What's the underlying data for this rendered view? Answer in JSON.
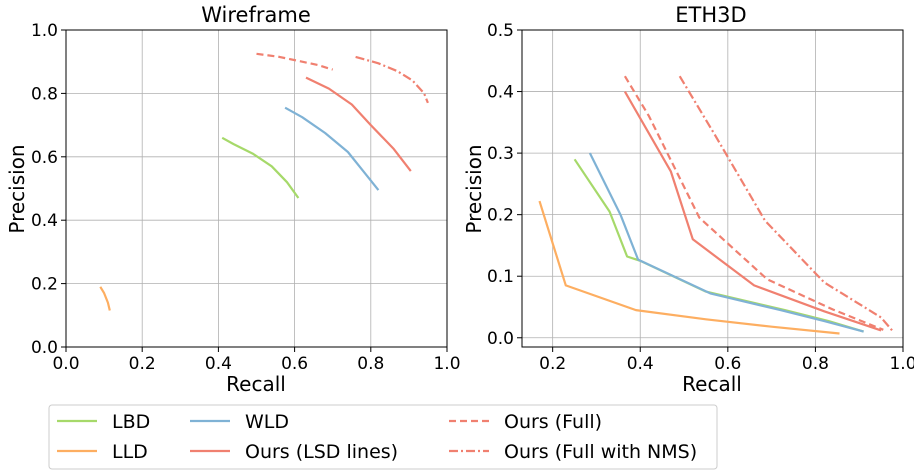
{
  "chart_data": [
    {
      "type": "line",
      "title": "Wireframe",
      "xlabel": "Recall",
      "ylabel": "Precision",
      "xlim": [
        0,
        1
      ],
      "ylim": [
        0,
        1
      ],
      "xticks": [
        "0.0",
        "0.2",
        "0.4",
        "0.6",
        "0.8",
        "1.0"
      ],
      "yticks": [
        "0.0",
        "0.2",
        "0.4",
        "0.6",
        "0.8",
        "1.0"
      ],
      "series": [
        {
          "name": "LBD",
          "color": "#a6d96a",
          "dash": "solid",
          "x": [
            0.41,
            0.44,
            0.49,
            0.54,
            0.58,
            0.61
          ],
          "y": [
            0.66,
            0.64,
            0.61,
            0.57,
            0.52,
            0.47
          ]
        },
        {
          "name": "LLD",
          "color": "#fdae61",
          "dash": "solid",
          "x": [
            0.09,
            0.1,
            0.11,
            0.115
          ],
          "y": [
            0.19,
            0.17,
            0.14,
            0.115
          ]
        },
        {
          "name": "WLD",
          "color": "#7fb2d5",
          "dash": "solid",
          "x": [
            0.575,
            0.62,
            0.68,
            0.74,
            0.78,
            0.82
          ],
          "y": [
            0.755,
            0.725,
            0.675,
            0.615,
            0.555,
            0.495
          ]
        },
        {
          "name": "Ours (LSD lines)",
          "color": "#f08070",
          "dash": "solid",
          "x": [
            0.63,
            0.69,
            0.75,
            0.8,
            0.86,
            0.905
          ],
          "y": [
            0.85,
            0.815,
            0.765,
            0.7,
            0.625,
            0.555
          ]
        },
        {
          "name": "Ours (Full)",
          "color": "#f08070",
          "dash": "dashed",
          "x": [
            0.5,
            0.56,
            0.62,
            0.66,
            0.7
          ],
          "y": [
            0.925,
            0.915,
            0.9,
            0.89,
            0.875
          ]
        },
        {
          "name": "Ours (Full with NMS)",
          "color": "#f08070",
          "dash": "dashdot",
          "x": [
            0.76,
            0.82,
            0.87,
            0.91,
            0.94,
            0.95
          ],
          "y": [
            0.915,
            0.895,
            0.87,
            0.84,
            0.8,
            0.77
          ]
        }
      ]
    },
    {
      "type": "line",
      "title": "ETH3D",
      "xlabel": "Recall",
      "ylabel": "Precision",
      "xlim": [
        0.13,
        1.0
      ],
      "ylim": [
        -0.015,
        0.5
      ],
      "xticks": [
        "0.2",
        "0.4",
        "0.6",
        "0.8",
        "1.0"
      ],
      "yticks": [
        "0.0",
        "0.1",
        "0.2",
        "0.3",
        "0.4",
        "0.5"
      ],
      "series": [
        {
          "name": "LBD",
          "color": "#a6d96a",
          "dash": "solid",
          "x": [
            0.25,
            0.33,
            0.37,
            0.4,
            0.55,
            0.73,
            0.83,
            0.91
          ],
          "y": [
            0.29,
            0.205,
            0.132,
            0.125,
            0.075,
            0.045,
            0.027,
            0.01
          ]
        },
        {
          "name": "LLD",
          "color": "#fdae61",
          "dash": "solid",
          "x": [
            0.17,
            0.23,
            0.39,
            0.55,
            0.7,
            0.855
          ],
          "y": [
            0.222,
            0.085,
            0.045,
            0.03,
            0.018,
            0.007
          ]
        },
        {
          "name": "WLD",
          "color": "#7fb2d5",
          "dash": "solid",
          "x": [
            0.285,
            0.355,
            0.395,
            0.56,
            0.72,
            0.82,
            0.91
          ],
          "y": [
            0.3,
            0.2,
            0.127,
            0.072,
            0.045,
            0.027,
            0.01
          ]
        },
        {
          "name": "Ours (LSD lines)",
          "color": "#f08070",
          "dash": "solid",
          "x": [
            0.365,
            0.47,
            0.52,
            0.66,
            0.82,
            0.95
          ],
          "y": [
            0.4,
            0.27,
            0.16,
            0.085,
            0.043,
            0.012
          ]
        },
        {
          "name": "Ours (Full)",
          "color": "#f08070",
          "dash": "dashed",
          "x": [
            0.365,
            0.42,
            0.535,
            0.69,
            0.84,
            0.955
          ],
          "y": [
            0.425,
            0.36,
            0.195,
            0.095,
            0.046,
            0.013
          ]
        },
        {
          "name": "Ours (Full with NMS)",
          "color": "#f08070",
          "dash": "dashdot",
          "x": [
            0.49,
            0.57,
            0.685,
            0.82,
            0.95,
            0.975
          ],
          "y": [
            0.425,
            0.33,
            0.19,
            0.09,
            0.033,
            0.012
          ]
        }
      ]
    }
  ],
  "legend": {
    "entries": [
      {
        "label": "LBD",
        "color": "#a6d96a",
        "dash": "solid"
      },
      {
        "label": "LLD",
        "color": "#fdae61",
        "dash": "solid"
      },
      {
        "label": "WLD",
        "color": "#7fb2d5",
        "dash": "solid"
      },
      {
        "label": "Ours (LSD lines)",
        "color": "#f08070",
        "dash": "solid"
      },
      {
        "label": "Ours (Full)",
        "color": "#f08070",
        "dash": "dashed"
      },
      {
        "label": "Ours (Full with NMS)",
        "color": "#f08070",
        "dash": "dashdot"
      }
    ]
  }
}
